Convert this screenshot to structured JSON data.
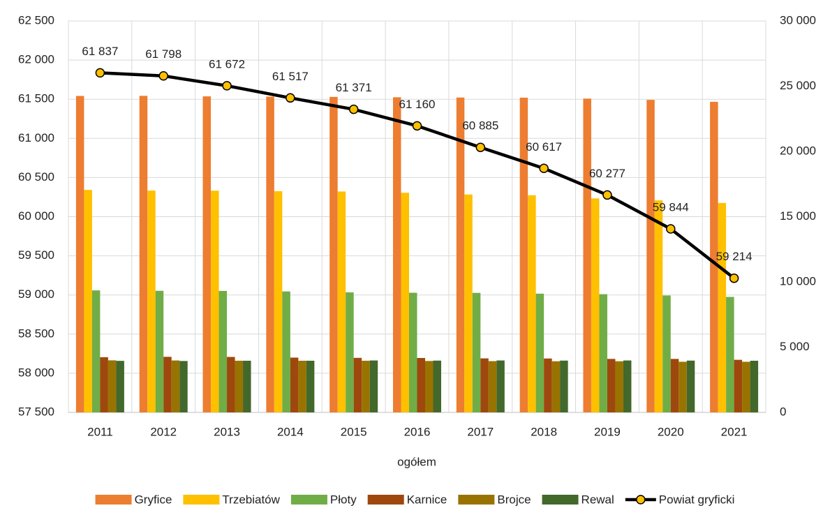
{
  "chart_data": {
    "type": "bar",
    "xlabel": "ogółem",
    "categories": [
      "2011",
      "2012",
      "2013",
      "2014",
      "2015",
      "2016",
      "2017",
      "2018",
      "2019",
      "2020",
      "2021"
    ],
    "ylim": [
      57500,
      62500
    ],
    "yticks": [
      {
        "value": 57500,
        "label": "57 500"
      },
      {
        "value": 58000,
        "label": "58 000"
      },
      {
        "value": 58500,
        "label": "58 500"
      },
      {
        "value": 59000,
        "label": "59 000"
      },
      {
        "value": 59500,
        "label": "59 500"
      },
      {
        "value": 60000,
        "label": "60 000"
      },
      {
        "value": 60500,
        "label": "60 500"
      },
      {
        "value": 61000,
        "label": "61 000"
      },
      {
        "value": 61500,
        "label": "61 500"
      },
      {
        "value": 62000,
        "label": "62 000"
      },
      {
        "value": 62500,
        "label": "62 500"
      }
    ],
    "y2lim": [
      0,
      30000
    ],
    "y2ticks": [
      0,
      {
        "value": 5000,
        "label": "5 000"
      },
      {
        "value": 10000,
        "label": "10 000"
      },
      {
        "value": 15000,
        "label": "15 000"
      },
      {
        "value": 20000,
        "label": "20 000"
      },
      {
        "value": 25000,
        "label": "25 000"
      },
      {
        "value": 30000,
        "label": "30 000"
      }
    ],
    "grid": true,
    "legend": "bottom",
    "series": [
      {
        "name": "Gryfice",
        "color": "#ed7d31",
        "axis": "y2",
        "type": "bar",
        "values": [
          24250,
          24260,
          24220,
          24200,
          24180,
          24150,
          24130,
          24120,
          24050,
          23950,
          23800
        ]
      },
      {
        "name": "Trzebiatów",
        "color": "#ffc000",
        "axis": "y2",
        "type": "bar",
        "values": [
          17050,
          17000,
          16990,
          16950,
          16930,
          16830,
          16700,
          16640,
          16400,
          16250,
          16050
        ]
      },
      {
        "name": "Płoty",
        "color": "#70ad47",
        "axis": "y2",
        "type": "bar",
        "values": [
          9350,
          9320,
          9310,
          9270,
          9200,
          9170,
          9160,
          9100,
          9060,
          8960,
          8850
        ]
      },
      {
        "name": "Karnice",
        "color": "#9e480e",
        "axis": "y2",
        "type": "bar",
        "values": [
          4230,
          4260,
          4250,
          4200,
          4180,
          4170,
          4140,
          4130,
          4100,
          4100,
          4030
        ]
      },
      {
        "name": "Brojce",
        "color": "#997300",
        "axis": "y2",
        "type": "bar",
        "values": [
          3990,
          3980,
          3960,
          3960,
          3960,
          3940,
          3930,
          3920,
          3920,
          3880,
          3880
        ]
      },
      {
        "name": "Rewal",
        "color": "#43682b",
        "axis": "y2",
        "type": "bar",
        "values": [
          3950,
          3940,
          3960,
          3960,
          3980,
          3970,
          3980,
          3970,
          3980,
          3970,
          3960
        ]
      },
      {
        "name": "Powiat gryficki",
        "color": "#000000",
        "marker_color": "#ffc000",
        "type": "line",
        "values": [
          61837,
          61798,
          61672,
          61517,
          61371,
          61160,
          60885,
          60617,
          60277,
          59844,
          59214
        ],
        "value_labels": [
          "61 837",
          "61 798",
          "61 672",
          "61 517",
          "61 371",
          "61 160",
          "60 885",
          "60 617",
          "60 277",
          "59 844",
          "59 214"
        ]
      }
    ]
  }
}
